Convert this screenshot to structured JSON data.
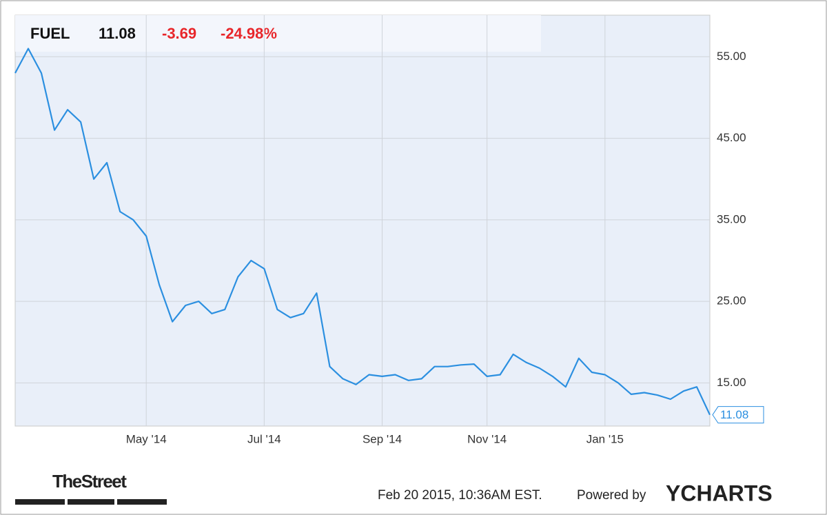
{
  "chart_data": {
    "type": "line",
    "header": {
      "symbol": "FUEL",
      "price": "11.08",
      "change": "-3.69",
      "change_pct": "-24.98%"
    },
    "categories": [
      null,
      null,
      null,
      null,
      null,
      null,
      null,
      null,
      null,
      null,
      "May '14",
      null,
      null,
      null,
      null,
      null,
      null,
      null,
      null,
      "Jul '14",
      null,
      null,
      null,
      null,
      null,
      null,
      null,
      null,
      "Sep '14",
      null,
      null,
      null,
      null,
      null,
      null,
      null,
      "Nov '14",
      null,
      null,
      null,
      null,
      null,
      null,
      null,
      null,
      "Jan '15",
      null,
      null,
      null,
      null,
      null,
      null,
      null,
      null
    ],
    "series": [
      {
        "name": "FUEL",
        "color": "#2b8fe0",
        "values": [
          53,
          56,
          53,
          46,
          48.5,
          47,
          40,
          42,
          36,
          35,
          33,
          27,
          22.5,
          24.5,
          25,
          23.5,
          24,
          28,
          30,
          29,
          24,
          23,
          23.5,
          26,
          17,
          15.5,
          14.8,
          16,
          15.8,
          16,
          15.3,
          15.5,
          17,
          17,
          17.2,
          17.3,
          15.8,
          16,
          18.5,
          17.5,
          16.8,
          15.8,
          14.5,
          18,
          16.3,
          16,
          15,
          13.6,
          13.8,
          13.5,
          13,
          14,
          14.5,
          11.08
        ]
      }
    ],
    "ylim": [
      9.7,
      60.1
    ],
    "yticks": [
      {
        "value": 15,
        "label": "15.00"
      },
      {
        "value": 25,
        "label": "25.00"
      },
      {
        "value": 35,
        "label": "35.00"
      },
      {
        "value": 45,
        "label": "45.00"
      },
      {
        "value": 55,
        "label": "55.00"
      }
    ],
    "grid": true,
    "footer": {
      "brand": "TheStreet",
      "timestamp": "Feb 20 2015, 10:36AM EST.",
      "powered": "Powered by",
      "provider": "YCHARTS"
    }
  }
}
